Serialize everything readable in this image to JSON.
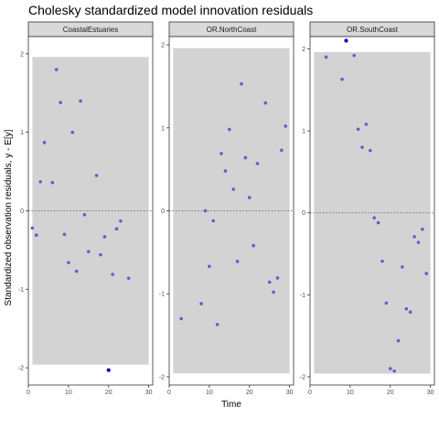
{
  "chart_data": {
    "type": "scatter",
    "title": "Cholesky standardized model innovation residuals",
    "xlabel": "Time",
    "ylabel": "Standardized observation residuals, y - E[y]",
    "xlim": [
      0,
      31
    ],
    "x_ticks": [
      0,
      10,
      20,
      30
    ],
    "grid": false,
    "band": "gray ±1.96 interval",
    "reference_line": 0,
    "colors": {
      "point": "#6a5acd",
      "outlier": "#0000cc",
      "band": "#d3d3d3",
      "strip": "#d9d9d9"
    },
    "panels": [
      {
        "name": "CoastalEstuaries",
        "ylim": [
          -2.22,
          2.22
        ],
        "y_ticks": [
          -2,
          -1,
          0,
          1,
          2
        ],
        "band": [
          -1.96,
          1.96
        ],
        "points": [
          [
            1,
            -0.22
          ],
          [
            2,
            -0.31
          ],
          [
            3,
            0.37
          ],
          [
            4,
            0.87
          ],
          [
            6,
            0.36
          ],
          [
            7,
            1.8
          ],
          [
            8,
            1.38
          ],
          [
            9,
            -0.3
          ],
          [
            10,
            -0.66
          ],
          [
            11,
            1.0
          ],
          [
            12,
            -0.77
          ],
          [
            13,
            1.4
          ],
          [
            14,
            -0.05
          ],
          [
            15,
            -0.52
          ],
          [
            17,
            0.45
          ],
          [
            18,
            -0.56
          ],
          [
            19,
            -0.33
          ],
          [
            21,
            -0.81
          ],
          [
            22,
            -0.23
          ],
          [
            23,
            -0.13
          ],
          [
            25,
            -0.86
          ]
        ],
        "outliers": [
          [
            20,
            -2.03
          ]
        ]
      },
      {
        "name": "OR.NorthCoast",
        "ylim": [
          -2.1,
          2.1
        ],
        "y_ticks": [
          -2,
          -1,
          0,
          1,
          2
        ],
        "band": [
          -1.96,
          1.96
        ],
        "points": [
          [
            3,
            -1.3
          ],
          [
            8,
            -1.12
          ],
          [
            9,
            0.0
          ],
          [
            10,
            -0.67
          ],
          [
            11,
            -0.12
          ],
          [
            12,
            -1.37
          ],
          [
            13,
            0.69
          ],
          [
            14,
            0.48
          ],
          [
            15,
            0.98
          ],
          [
            16,
            0.26
          ],
          [
            17,
            -0.61
          ],
          [
            18,
            1.53
          ],
          [
            19,
            0.64
          ],
          [
            20,
            0.16
          ],
          [
            21,
            -0.42
          ],
          [
            22,
            0.57
          ],
          [
            24,
            1.3
          ],
          [
            25,
            -0.86
          ],
          [
            26,
            -0.98
          ],
          [
            27,
            -0.81
          ],
          [
            28,
            0.73
          ],
          [
            29,
            1.02
          ]
        ],
        "outliers": []
      },
      {
        "name": "OR.SouthCoast",
        "ylim": [
          -2.1,
          2.15
        ],
        "y_ticks": [
          -2,
          -1,
          0,
          1,
          2
        ],
        "band": [
          -1.96,
          1.96
        ],
        "points": [
          [
            4,
            1.9
          ],
          [
            8,
            1.63
          ],
          [
            11,
            1.92
          ],
          [
            12,
            1.02
          ],
          [
            13,
            0.8
          ],
          [
            14,
            1.08
          ],
          [
            15,
            0.76
          ],
          [
            16,
            -0.06
          ],
          [
            17,
            -0.12
          ],
          [
            18,
            -0.59
          ],
          [
            19,
            -1.1
          ],
          [
            20,
            -1.9
          ],
          [
            21,
            -1.93
          ],
          [
            22,
            -1.56
          ],
          [
            23,
            -0.66
          ],
          [
            24,
            -1.17
          ],
          [
            25,
            -1.21
          ],
          [
            26,
            -0.29
          ],
          [
            27,
            -0.36
          ],
          [
            28,
            -0.2
          ],
          [
            29,
            -0.74
          ]
        ],
        "outliers": [
          [
            9,
            2.1
          ]
        ]
      }
    ]
  }
}
